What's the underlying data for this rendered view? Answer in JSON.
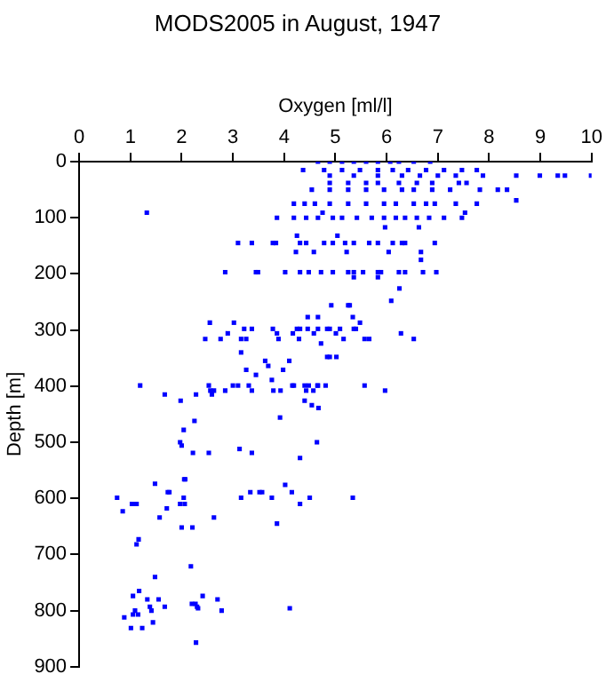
{
  "chart_data": {
    "type": "scatter",
    "title": "MODS2005 in August, 1947",
    "xlabel": "Oxygen [ml/l]",
    "ylabel": "Depth [m]",
    "color": "#0000ff",
    "marker": "square",
    "grid": false,
    "legend": false,
    "xlim": [
      0,
      10
    ],
    "xticks": [
      0,
      1,
      2,
      3,
      4,
      5,
      6,
      7,
      8,
      9,
      10
    ],
    "ylim": [
      900,
      0
    ],
    "yticks": [
      0,
      100,
      200,
      300,
      400,
      500,
      600,
      700,
      800,
      900
    ],
    "x": [
      4.66,
      4.89,
      5.13,
      5.36,
      5.6,
      5.83,
      6.07,
      6.24,
      6.53,
      6.85,
      4.37,
      4.78,
      5.13,
      5.48,
      5.83,
      6.12,
      6.42,
      6.77,
      7.12,
      7.47,
      7.76,
      4.89,
      5.36,
      5.83,
      6.3,
      6.65,
      7.0,
      7.35,
      7.88,
      8.53,
      8.99,
      9.34,
      9.48,
      9.99,
      4.89,
      5.25,
      5.6,
      5.83,
      6.24,
      6.59,
      6.89,
      7.41,
      7.56,
      4.54,
      4.89,
      5.25,
      5.6,
      5.95,
      6.3,
      6.53,
      6.89,
      7.24,
      7.82,
      8.17,
      8.35,
      8.53,
      4.19,
      4.4,
      4.6,
      4.89,
      5.25,
      5.6,
      5.95,
      6.18,
      6.53,
      6.77,
      6.94,
      7.35,
      7.76,
      1.32,
      4.75,
      7.53,
      3.86,
      4.19,
      4.43,
      4.66,
      4.95,
      5.13,
      5.42,
      5.71,
      5.95,
      6.18,
      6.36,
      6.59,
      6.83,
      7.12,
      7.47,
      5.97,
      6.63,
      4.25,
      5.04,
      3.1,
      3.37,
      3.78,
      3.84,
      4.31,
      4.43,
      4.78,
      4.95,
      5.19,
      5.36,
      5.66,
      5.83,
      6.12,
      6.3,
      6.36,
      6.94,
      4.23,
      4.58,
      5.22,
      6.04,
      6.67,
      6.67,
      2.85,
      3.45,
      3.49,
      4.02,
      4.31,
      4.48,
      4.72,
      4.95,
      5.25,
      5.36,
      5.54,
      5.83,
      5.89,
      6.24,
      6.36,
      6.71,
      6.97,
      5.36,
      5.83,
      6.25,
      6.09,
      4.92,
      5.25,
      5.28,
      4.46,
      4.66,
      5.34,
      2.55,
      3.02,
      5.48,
      3.22,
      3.37,
      3.78,
      4.25,
      4.31,
      4.46,
      4.66,
      4.84,
      4.89,
      5.09,
      5.36,
      5.4,
      2.9,
      3.86,
      4.17,
      4.58,
      5.01,
      6.28,
      2.46,
      2.76,
      3.16,
      3.26,
      3.89,
      4.29,
      5.16,
      5.57,
      5.66,
      6.53,
      4.72,
      3.16,
      4.84,
      4.89,
      5.02,
      3.63,
      4.1,
      3.69,
      3.26,
      3.98,
      3.45,
      3.76,
      1.19,
      2.53,
      3.0,
      3.1,
      3.31,
      4.16,
      4.19,
      4.4,
      4.48,
      4.65,
      4.66,
      4.81,
      5.57,
      2.56,
      2.63,
      2.85,
      3.37,
      3.79,
      3.93,
      4.43,
      4.57,
      5.97,
      1.67,
      2.28,
      2.59,
      1.98,
      4.4,
      4.54,
      4.67,
      3.92,
      2.25,
      2.04,
      1.97,
      4.64,
      2.0,
      3.13,
      2.22,
      2.53,
      3.37,
      4.31,
      2.05,
      2.07,
      1.48,
      4.02,
      1.73,
      1.76,
      3.34,
      3.52,
      3.57,
      4.15,
      0.74,
      2.04,
      3.16,
      3.76,
      4.5,
      5.34,
      1.03,
      1.09,
      1.12,
      1.97,
      2.06,
      4.31,
      1.71,
      0.85,
      1.57,
      2.63,
      3.86,
      2.0,
      2.21,
      1.16,
      1.12,
      2.18,
      1.48,
      1.17,
      1.05,
      2.41,
      1.33,
      1.55,
      2.7,
      2.2,
      2.27,
      1.38,
      1.67,
      2.3,
      2.32,
      4.11,
      1.09,
      1.41,
      2.78,
      1.05,
      1.15,
      0.88,
      1.44,
      1.01,
      1.23,
      2.28
    ],
    "values": [
      0,
      0,
      0,
      0,
      0,
      0,
      0,
      0,
      0,
      0,
      15,
      15,
      15,
      15,
      15,
      15,
      15,
      15,
      15,
      15,
      15,
      25,
      25,
      25,
      25,
      25,
      25,
      25,
      25,
      25,
      25,
      25,
      25,
      25,
      38,
      38,
      38,
      38,
      38,
      38,
      38,
      38,
      38,
      50,
      50,
      50,
      50,
      50,
      50,
      50,
      50,
      50,
      50,
      50,
      50,
      69,
      75,
      75,
      75,
      75,
      75,
      75,
      75,
      75,
      75,
      75,
      75,
      75,
      75,
      91,
      91,
      91,
      100,
      100,
      100,
      100,
      100,
      100,
      100,
      100,
      100,
      100,
      100,
      100,
      100,
      100,
      100,
      117,
      117,
      132,
      132,
      145,
      145,
      145,
      145,
      145,
      145,
      145,
      145,
      145,
      145,
      145,
      145,
      145,
      145,
      145,
      145,
      161,
      161,
      161,
      161,
      161,
      175,
      197,
      197,
      197,
      197,
      197,
      197,
      197,
      197,
      197,
      197,
      197,
      197,
      197,
      197,
      197,
      197,
      197,
      206,
      206,
      226,
      248,
      256,
      256,
      256,
      277,
      277,
      277,
      287,
      287,
      287,
      298,
      298,
      298,
      298,
      298,
      298,
      298,
      298,
      298,
      298,
      298,
      298,
      306,
      306,
      306,
      306,
      306,
      306,
      316,
      316,
      316,
      316,
      316,
      316,
      316,
      316,
      316,
      316,
      324,
      340,
      348,
      348,
      348,
      355,
      355,
      364,
      371,
      371,
      380,
      389,
      399,
      399,
      399,
      399,
      399,
      399,
      399,
      399,
      399,
      399,
      399,
      399,
      399,
      408,
      408,
      408,
      408,
      408,
      408,
      408,
      408,
      408,
      415,
      415,
      415,
      426,
      426,
      434,
      439,
      456,
      462,
      478,
      500,
      500,
      506,
      512,
      519,
      519,
      519,
      528,
      566,
      566,
      574,
      576,
      589,
      589,
      589,
      589,
      589,
      589,
      599,
      599,
      599,
      599,
      599,
      599,
      610,
      610,
      610,
      610,
      610,
      610,
      618,
      623,
      634,
      634,
      645,
      652,
      652,
      673,
      682,
      721,
      740,
      765,
      774,
      774,
      780,
      780,
      780,
      788,
      788,
      793,
      793,
      793,
      796,
      796,
      800,
      800,
      800,
      807,
      807,
      812,
      821,
      831,
      831,
      857
    ]
  }
}
